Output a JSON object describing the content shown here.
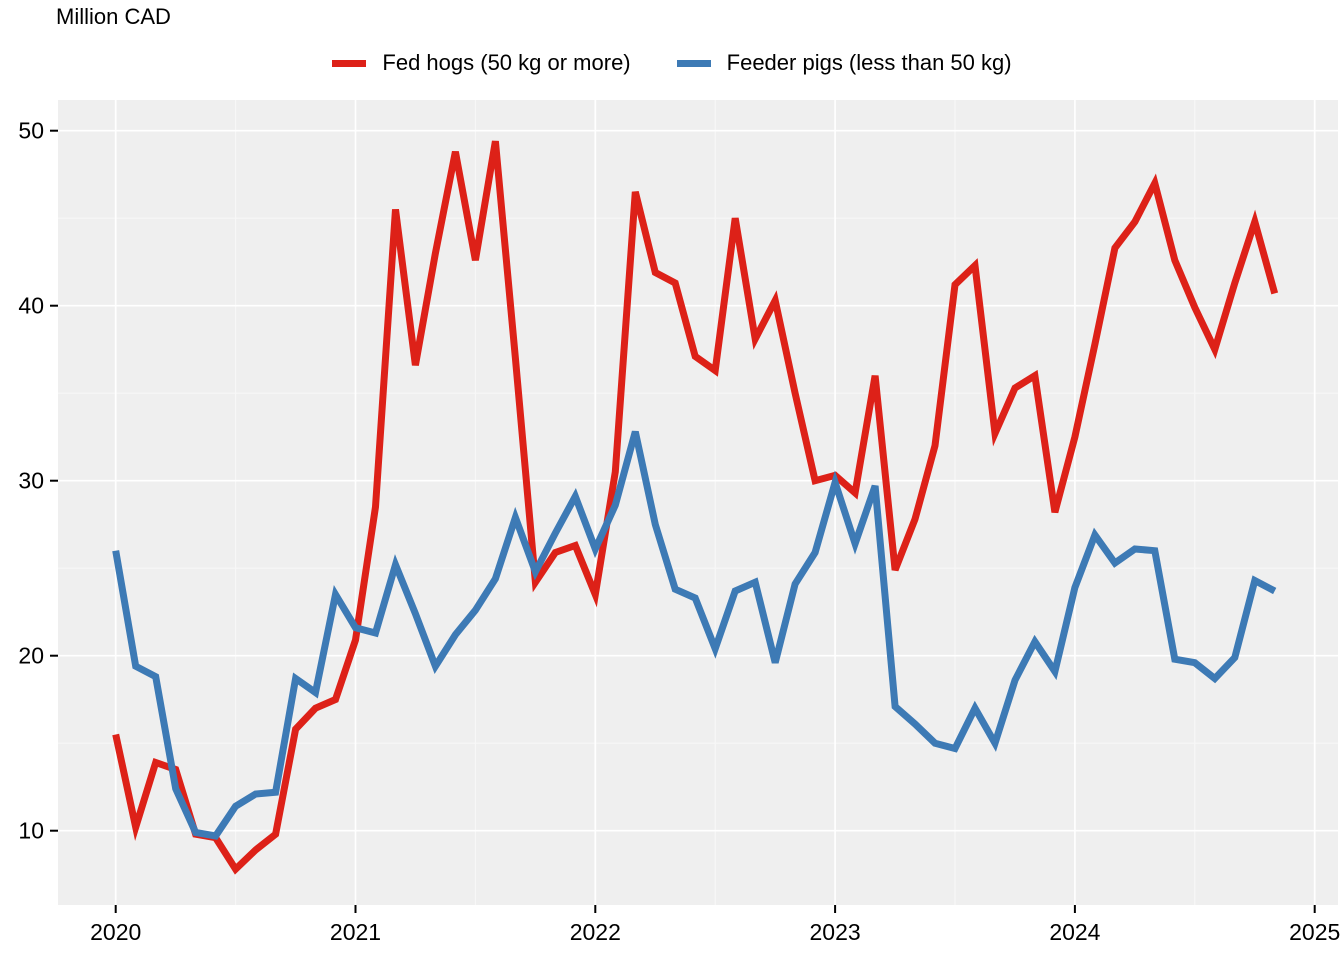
{
  "chart_data": {
    "type": "line",
    "title": "Million CAD",
    "xlabel": "",
    "ylabel": "Million CAD",
    "x_tick_labels": [
      "2020",
      "2021",
      "2022",
      "2023",
      "2024",
      "2025"
    ],
    "y_tick_labels": [
      "10",
      "20",
      "30",
      "40",
      "50"
    ],
    "y_major_ticks": [
      10,
      20,
      30,
      40,
      50
    ],
    "y_minor_ticks": [
      15,
      25,
      35,
      45
    ],
    "ylim": [
      5.7,
      51.8
    ],
    "xlim_years": [
      2019.76,
      2025.12
    ],
    "grid": "white major and faint minor gridlines on light gray panel",
    "legend_position": "top-center",
    "x": [
      "2020-01",
      "2020-02",
      "2020-03",
      "2020-04",
      "2020-05",
      "2020-06",
      "2020-07",
      "2020-08",
      "2020-09",
      "2020-10",
      "2020-11",
      "2020-12",
      "2021-01",
      "2021-02",
      "2021-03",
      "2021-04",
      "2021-05",
      "2021-06",
      "2021-07",
      "2021-08",
      "2021-09",
      "2021-10",
      "2021-11",
      "2021-12",
      "2022-01",
      "2022-02",
      "2022-03",
      "2022-04",
      "2022-05",
      "2022-06",
      "2022-07",
      "2022-08",
      "2022-09",
      "2022-10",
      "2022-11",
      "2022-12",
      "2023-01",
      "2023-02",
      "2023-03",
      "2023-04",
      "2023-05",
      "2023-06",
      "2023-07",
      "2023-08",
      "2023-09",
      "2023-10",
      "2023-11",
      "2023-12",
      "2024-01",
      "2024-02",
      "2024-03",
      "2024-04",
      "2024-05",
      "2024-06",
      "2024-07",
      "2024-08",
      "2024-09",
      "2024-10",
      "2024-11"
    ],
    "series": [
      {
        "name": "Fed hogs (50 kg or more)",
        "color": "#dd2118",
        "values": [
          15.5,
          10.2,
          13.9,
          13.5,
          9.8,
          9.6,
          7.8,
          8.9,
          9.8,
          15.8,
          17.0,
          17.5,
          20.9,
          28.5,
          45.5,
          36.6,
          43.0,
          48.8,
          42.6,
          49.4,
          37.0,
          24.2,
          25.9,
          26.3,
          23.5,
          30.5,
          46.5,
          41.9,
          41.3,
          37.1,
          36.3,
          45.0,
          38.1,
          40.3,
          35.0,
          30.0,
          30.3,
          29.3,
          36.0,
          24.9,
          27.8,
          32.0,
          41.2,
          42.3,
          32.7,
          35.3,
          36.0,
          28.2,
          32.5,
          37.8,
          43.3,
          44.8,
          47.0,
          42.6,
          39.9,
          37.5,
          41.3,
          44.8,
          40.7
        ]
      },
      {
        "name": "Feeder pigs (less than 50 kg)",
        "color": "#3d7ab5",
        "values": [
          26.0,
          19.4,
          18.8,
          12.4,
          9.9,
          9.7,
          11.4,
          12.1,
          12.2,
          18.7,
          17.9,
          23.5,
          21.6,
          21.3,
          25.2,
          22.4,
          19.4,
          21.2,
          22.6,
          24.4,
          27.9,
          24.8,
          27.0,
          29.1,
          26.1,
          28.6,
          32.8,
          27.5,
          23.8,
          23.3,
          20.4,
          23.7,
          24.2,
          19.6,
          24.1,
          25.9,
          29.9,
          26.4,
          29.7,
          17.1,
          16.1,
          15.0,
          14.7,
          17.0,
          15.0,
          18.6,
          20.8,
          19.1,
          23.9,
          26.9,
          25.3,
          26.1,
          26.0,
          19.8,
          19.6,
          18.7,
          19.9,
          24.3,
          23.7
        ]
      }
    ],
    "panel_background": "#efefef",
    "major_grid_color": "#ffffff",
    "minor_grid_color": "#f7f7f7",
    "axis_text_color": "#000000"
  }
}
